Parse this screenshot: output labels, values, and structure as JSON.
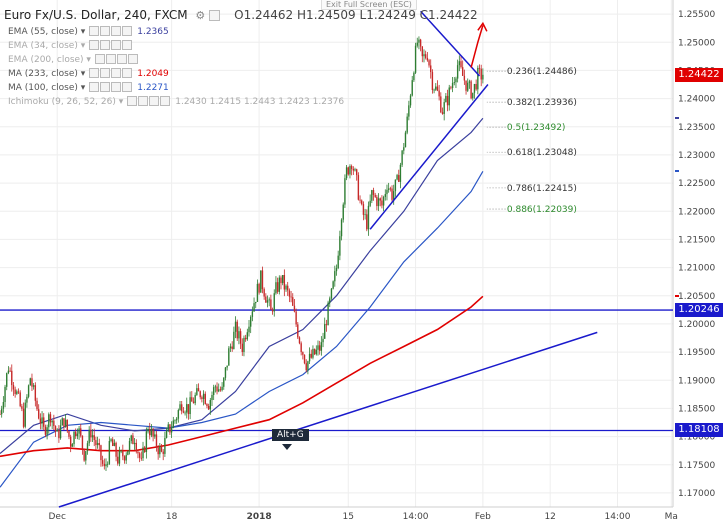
{
  "header": {
    "symbol_title": "Euro Fx/U.S. Dollar, 240, FXCM",
    "exit_full_screen": "Exit Full Screen (ESC)",
    "ohlc": {
      "o": "O1.24462",
      "h": "H1.24509",
      "l": "L1.24249",
      "c": "C1.24422"
    }
  },
  "indicators": [
    {
      "label": "EMA (55, close)",
      "value": "1.2365",
      "value_color": "#3a3f9e",
      "muted": false
    },
    {
      "label": "EMA (34, close)",
      "value": "",
      "value_color": "#999999",
      "muted": true
    },
    {
      "label": "EMA (200, close)",
      "value": "",
      "value_color": "#999999",
      "muted": true
    },
    {
      "label": "MA (233, close)",
      "value": "1.2049",
      "value_color": "#e00000",
      "muted": false
    },
    {
      "label": "MA (100, close)",
      "value": "1.2271",
      "value_color": "#2a56c6",
      "muted": false
    },
    {
      "label": "Ichimoku (9, 26, 52, 26)",
      "value": "1.2430   1.2415   1.2443   1.2423   1.2376",
      "value_color": "#aaaaaa",
      "muted": true
    }
  ],
  "tooltip": "Alt+G",
  "colors": {
    "up": "#2e7d32",
    "down": "#c62828",
    "trendline": "#1a1acc",
    "ema55": "#3a3f9e",
    "ma100": "#2a56c6",
    "ma233": "#e00000",
    "arrow": "#e00000",
    "fib_green": "#2e8b2e",
    "fib_dark": "#333333",
    "grid": "#eeeeee"
  },
  "chart_data": {
    "type": "candlestick",
    "y_axis": {
      "ylim": [
        1.1675,
        1.2575
      ],
      "ticks": [
        1.17,
        1.175,
        1.18,
        1.185,
        1.19,
        1.195,
        1.2,
        1.205,
        1.21,
        1.215,
        1.22,
        1.225,
        1.23,
        1.235,
        1.24,
        1.245,
        1.25,
        1.255
      ],
      "tick_labels": [
        "1.17000",
        "1.17500",
        "1.18000",
        "1.18500",
        "1.19000",
        "1.19500",
        "1.20000",
        "1.20500",
        "1.21000",
        "1.21500",
        "1.22000",
        "1.22500",
        "1.23000",
        "1.23500",
        "1.24000",
        "1.24500",
        "1.25000",
        "1.25500"
      ]
    },
    "x_axis": {
      "bar_range": [
        0,
        400
      ],
      "ticks": [
        {
          "bar": 34,
          "label": "Dec",
          "bold": false
        },
        {
          "bar": 102,
          "label": "18",
          "bold": false
        },
        {
          "bar": 154,
          "label": "2018",
          "bold": true
        },
        {
          "bar": 207,
          "label": "15",
          "bold": false
        },
        {
          "bar": 247,
          "label": "14:00",
          "bold": false
        },
        {
          "bar": 287,
          "label": "Feb",
          "bold": false
        },
        {
          "bar": 327,
          "label": "12",
          "bold": false
        },
        {
          "bar": 367,
          "label": "14:00",
          "bold": false
        },
        {
          "bar": 399,
          "label": "Ma",
          "bold": false
        }
      ]
    },
    "price_path": [
      [
        0,
        1.184
      ],
      [
        5,
        1.1925
      ],
      [
        10,
        1.1875
      ],
      [
        14,
        1.183
      ],
      [
        18,
        1.1905
      ],
      [
        22,
        1.185
      ],
      [
        26,
        1.181
      ],
      [
        30,
        1.184
      ],
      [
        34,
        1.18
      ],
      [
        38,
        1.183
      ],
      [
        42,
        1.179
      ],
      [
        46,
        1.182
      ],
      [
        50,
        1.177
      ],
      [
        54,
        1.181
      ],
      [
        58,
        1.178
      ],
      [
        62,
        1.174
      ],
      [
        66,
        1.179
      ],
      [
        70,
        1.176
      ],
      [
        74,
        1.177
      ],
      [
        80,
        1.18
      ],
      [
        84,
        1.175
      ],
      [
        88,
        1.182
      ],
      [
        92,
        1.179
      ],
      [
        96,
        1.177
      ],
      [
        100,
        1.181
      ],
      [
        104,
        1.183
      ],
      [
        108,
        1.186
      ],
      [
        112,
        1.185
      ],
      [
        116,
        1.187
      ],
      [
        120,
        1.188
      ],
      [
        124,
        1.186
      ],
      [
        128,
        1.189
      ],
      [
        132,
        1.188
      ],
      [
        136,
        1.195
      ],
      [
        140,
        1.199
      ],
      [
        144,
        1.196
      ],
      [
        148,
        1.201
      ],
      [
        152,
        1.205
      ],
      [
        155,
        1.208
      ],
      [
        158,
        1.205
      ],
      [
        161,
        1.202
      ],
      [
        164,
        1.206
      ],
      [
        167,
        1.208
      ],
      [
        170,
        1.206
      ],
      [
        173,
        1.204
      ],
      [
        176,
        1.2
      ],
      [
        179,
        1.196
      ],
      [
        182,
        1.193
      ],
      [
        185,
        1.194
      ],
      [
        188,
        1.195
      ],
      [
        191,
        1.196
      ],
      [
        194,
        1.201
      ],
      [
        197,
        1.205
      ],
      [
        200,
        1.21
      ],
      [
        203,
        1.22
      ],
      [
        206,
        1.227
      ],
      [
        209,
        1.229
      ],
      [
        212,
        1.225
      ],
      [
        215,
        1.22
      ],
      [
        218,
        1.218
      ],
      [
        221,
        1.223
      ],
      [
        224,
        1.222
      ],
      [
        227,
        1.221
      ],
      [
        230,
        1.225
      ],
      [
        233,
        1.223
      ],
      [
        236,
        1.225
      ],
      [
        239,
        1.23
      ],
      [
        242,
        1.236
      ],
      [
        245,
        1.244
      ],
      [
        248,
        1.25
      ],
      [
        251,
        1.247
      ],
      [
        254,
        1.248
      ],
      [
        257,
        1.243
      ],
      [
        260,
        1.241
      ],
      [
        263,
        1.238
      ],
      [
        266,
        1.24
      ],
      [
        269,
        1.243
      ],
      [
        272,
        1.246
      ],
      [
        275,
        1.244
      ],
      [
        278,
        1.242
      ],
      [
        281,
        1.241
      ],
      [
        284,
        1.244
      ],
      [
        287,
        1.2442
      ]
    ],
    "moving_averages": [
      {
        "name": "EMA (55, close)",
        "color_key": "ema55",
        "points": [
          [
            0,
            1.177
          ],
          [
            20,
            1.182
          ],
          [
            40,
            1.184
          ],
          [
            60,
            1.182
          ],
          [
            80,
            1.181
          ],
          [
            100,
            1.1815
          ],
          [
            120,
            1.183
          ],
          [
            140,
            1.188
          ],
          [
            160,
            1.196
          ],
          [
            180,
            1.199
          ],
          [
            200,
            1.205
          ],
          [
            220,
            1.213
          ],
          [
            240,
            1.22
          ],
          [
            260,
            1.229
          ],
          [
            280,
            1.234
          ],
          [
            287,
            1.2365
          ]
        ]
      },
      {
        "name": "MA (100, close)",
        "color_key": "ma100",
        "points": [
          [
            0,
            1.171
          ],
          [
            20,
            1.179
          ],
          [
            40,
            1.182
          ],
          [
            60,
            1.1825
          ],
          [
            80,
            1.182
          ],
          [
            100,
            1.1815
          ],
          [
            120,
            1.1825
          ],
          [
            140,
            1.184
          ],
          [
            160,
            1.188
          ],
          [
            180,
            1.191
          ],
          [
            200,
            1.196
          ],
          [
            220,
            1.203
          ],
          [
            240,
            1.211
          ],
          [
            260,
            1.217
          ],
          [
            280,
            1.2235
          ],
          [
            287,
            1.2271
          ]
        ]
      },
      {
        "name": "MA (233, close)",
        "color_key": "ma233",
        "points": [
          [
            0,
            1.1765
          ],
          [
            20,
            1.1775
          ],
          [
            40,
            1.178
          ],
          [
            60,
            1.1775
          ],
          [
            80,
            1.1775
          ],
          [
            100,
            1.1785
          ],
          [
            120,
            1.18
          ],
          [
            140,
            1.1815
          ],
          [
            160,
            1.183
          ],
          [
            180,
            1.186
          ],
          [
            200,
            1.1895
          ],
          [
            220,
            1.193
          ],
          [
            240,
            1.196
          ],
          [
            260,
            1.199
          ],
          [
            280,
            1.203
          ],
          [
            287,
            1.2049
          ]
        ]
      }
    ],
    "horizontal_levels": [
      {
        "price": 1.20246,
        "label": "1.20246"
      },
      {
        "price": 1.18108,
        "label": "1.18108"
      }
    ],
    "current_price": {
      "price": 1.24422,
      "label": "1.24422"
    },
    "price_labels_axis": [
      {
        "price": 1.2049,
        "color_key": "ma233"
      },
      {
        "price": 1.2271,
        "color_key": "ma100"
      },
      {
        "price": 1.2365,
        "color_key": "ema55"
      }
    ],
    "trendlines": [
      {
        "from": [
          35,
          1.1675
        ],
        "to": [
          355,
          1.1985
        ]
      },
      {
        "from": [
          220,
          1.2168
        ],
        "to": [
          290,
          1.2425
        ]
      },
      {
        "from": [
          250,
          1.2555
        ],
        "to": [
          285,
          1.244
        ]
      }
    ],
    "fibonacci": {
      "x_start": 225,
      "x_end": 287,
      "levels": [
        {
          "price": 1.24486,
          "label": "0.236(1.24486)",
          "style": "dark"
        },
        {
          "price": 1.23936,
          "label": "0.382(1.23936)",
          "style": "dark"
        },
        {
          "price": 1.23492,
          "label": "0.5(1.23492)",
          "style": "green"
        },
        {
          "price": 1.23048,
          "label": "0.618(1.23048)",
          "style": "dark"
        },
        {
          "price": 1.22415,
          "label": "0.786(1.22415)",
          "style": "dark"
        },
        {
          "price": 1.22039,
          "label": "0.886(1.22039)",
          "style": "green"
        }
      ]
    },
    "arrow": {
      "from": [
        280,
        1.2455
      ],
      "via": [
        284,
        1.25
      ],
      "to": [
        287,
        1.253
      ]
    }
  }
}
